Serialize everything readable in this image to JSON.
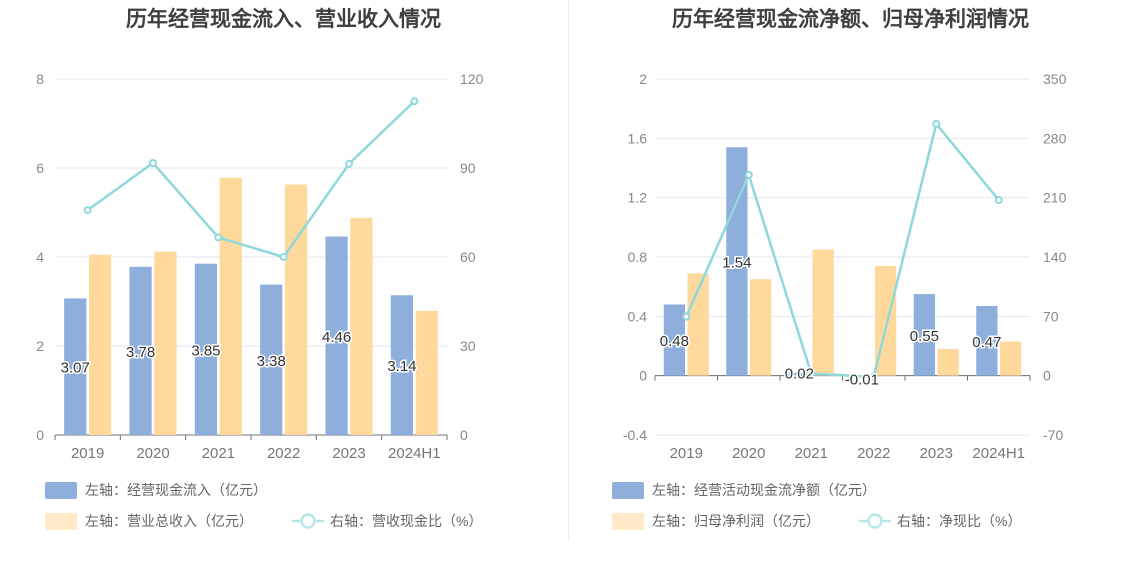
{
  "chart_data": [
    {
      "type": "bar",
      "title": "历年经营现金流入、营业收入情况",
      "categories": [
        "2019",
        "2020",
        "2021",
        "2022",
        "2023",
        "2024H1"
      ],
      "left_axis": {
        "min": 0,
        "max": 8,
        "ticks": [
          "0",
          "2",
          "4",
          "6",
          "8"
        ]
      },
      "right_axis": {
        "min": 0,
        "max": 120,
        "ticks": [
          "0",
          "30",
          "60",
          "90",
          "120"
        ]
      },
      "series": [
        {
          "name": "左轴：经营现金流入（亿元）",
          "kind": "bar",
          "axis": "left",
          "color": "#8eaedb",
          "values": [
            3.07,
            3.78,
            3.85,
            3.38,
            4.46,
            3.14
          ],
          "labels": [
            "3.07",
            "3.78",
            "3.85",
            "3.38",
            "4.46",
            "3.14"
          ]
        },
        {
          "name": "左轴：营业总收入（亿元）",
          "kind": "bar",
          "axis": "left",
          "color": "#ffd99c",
          "values": [
            4.05,
            4.12,
            5.78,
            5.63,
            4.88,
            2.79
          ]
        },
        {
          "name": "右轴：营收现金比（%）",
          "kind": "line",
          "axis": "right",
          "color": "#8ed8db",
          "values": [
            75.8,
            91.7,
            66.6,
            60.0,
            91.4,
            112.5
          ]
        }
      ],
      "legend": [
        {
          "label": "左轴：经营现金流入（亿元）",
          "style": "bar",
          "color": "#8eaedb"
        },
        {
          "label": "左轴：营业总收入（亿元）",
          "style": "bar",
          "color": "#ffe9c6"
        },
        {
          "label": "右轴：营收现金比（%）",
          "style": "line",
          "color": "#8ed8db"
        }
      ],
      "legend_placement": "bottom",
      "grid": true
    },
    {
      "type": "bar",
      "title": "历年经营现金流净额、归母净利润情况",
      "categories": [
        "2019",
        "2020",
        "2021",
        "2022",
        "2023",
        "2024H1"
      ],
      "left_axis": {
        "min": -0.4,
        "max": 2,
        "ticks": [
          "-0.4",
          "0",
          "0.4",
          "0.8",
          "1.2",
          "1.6",
          "2"
        ]
      },
      "right_axis": {
        "min": -70,
        "max": 350,
        "ticks": [
          "-70",
          "0",
          "70",
          "140",
          "210",
          "280",
          "350"
        ]
      },
      "series": [
        {
          "name": "左轴：经营活动现金流净额（亿元）",
          "kind": "bar",
          "axis": "left",
          "color": "#8eaedb",
          "values": [
            0.48,
            1.54,
            0.02,
            -0.01,
            0.55,
            0.47
          ],
          "labels": [
            "0.48",
            "1.54",
            "0.02",
            "-0.01",
            "0.55",
            "0.47"
          ]
        },
        {
          "name": "左轴：归母净利润（亿元）",
          "kind": "bar",
          "axis": "left",
          "color": "#ffd99c",
          "values": [
            0.69,
            0.65,
            0.85,
            0.74,
            0.18,
            0.23
          ]
        },
        {
          "name": "右轴：净现比（%）",
          "kind": "line",
          "axis": "right",
          "color": "#8ed8db",
          "values": [
            69.6,
            236.9,
            2.4,
            -1.4,
            297.0,
            207.2
          ]
        }
      ],
      "legend": [
        {
          "label": "左轴：经营活动现金流净额（亿元）",
          "style": "bar",
          "color": "#8eaedb"
        },
        {
          "label": "左轴：归母净利润（亿元）",
          "style": "bar",
          "color": "#ffe9c6"
        },
        {
          "label": "右轴：净现比（%）",
          "style": "line",
          "color": "#8ed8db"
        }
      ],
      "legend_placement": "bottom",
      "grid": true
    }
  ]
}
